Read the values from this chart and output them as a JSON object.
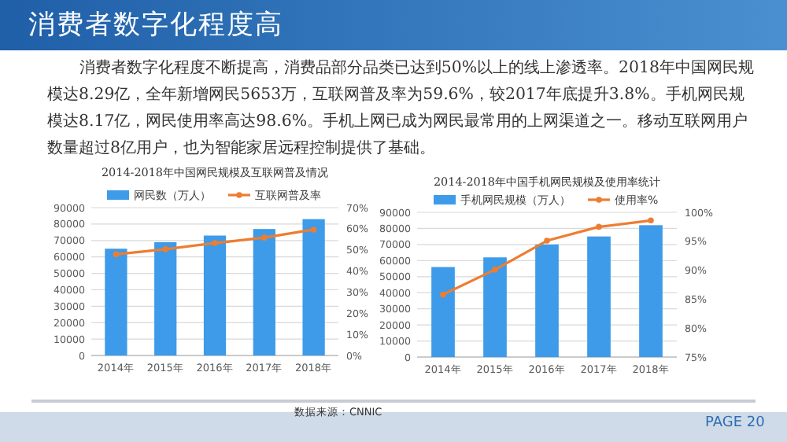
{
  "chart_data": [
    {
      "type": "bar",
      "title": "2014-2018年中国网民规模及互联网普及情况",
      "categories": [
        "2014年",
        "2015年",
        "2016年",
        "2017年",
        "2018年"
      ],
      "series": [
        {
          "name": "网民数（万人）",
          "color": "#3d9be9",
          "values": [
            65000,
            69000,
            73000,
            77000,
            83000
          ]
        },
        {
          "name": "互联网普及率",
          "type": "line",
          "axis": "y2",
          "color": "#ed7d31",
          "values": [
            47.9,
            50.3,
            53.2,
            55.8,
            59.6
          ]
        }
      ],
      "ylim": [
        0,
        90000
      ],
      "yticks": [
        0,
        10000,
        20000,
        30000,
        40000,
        50000,
        60000,
        70000,
        80000,
        90000
      ],
      "y2lim": [
        0,
        70
      ],
      "y2ticks": [
        {
          "value": 0,
          "label": "0%"
        },
        {
          "value": 10,
          "label": "10%"
        },
        {
          "value": 20,
          "label": "20%"
        },
        {
          "value": 30,
          "label": "30%"
        },
        {
          "value": 40,
          "label": "40%"
        },
        {
          "value": 50,
          "label": "50%"
        },
        {
          "value": 60,
          "label": "60%"
        },
        {
          "value": 70,
          "label": "70%"
        }
      ],
      "grid": "y",
      "legend": "top",
      "marker": "circle",
      "annotations": [
        "消费者数字化程度高",
        "消费者数字化程度不断提高，消费品部分品类已达到50%以上的线上渗透率。2018年中国网民规模达8.29亿，全年新增网民5653万，互联网普及率为59.6%，较2017年底提升3.8%。手机网民规模达8.17亿，网民使用率高达98.6%。手机上网已成为网民最常用的上网渠道之一。移动互联网用户数量超过8亿用户，也为智能家居远程控制提供了基础。",
        "数据来源：CNNIC"
      ]
    },
    {
      "type": "bar",
      "title": "2014-2018年中国手机网民规模及使用率统计",
      "categories": [
        "2014年",
        "2015年",
        "2016年",
        "2017年",
        "2018年"
      ],
      "series": [
        {
          "name": "手机网民规模（万人）",
          "color": "#3d9be9",
          "values": [
            56000,
            62000,
            70000,
            75000,
            82000
          ]
        },
        {
          "name": "使用率%",
          "type": "line",
          "axis": "y2",
          "color": "#ed7d31",
          "values": [
            85.8,
            90.1,
            95.1,
            97.5,
            98.6
          ]
        }
      ],
      "ylim": [
        0,
        90000
      ],
      "yticks": [
        0,
        10000,
        20000,
        30000,
        40000,
        50000,
        60000,
        70000,
        80000,
        90000
      ],
      "y2lim": [
        75,
        100
      ],
      "y2ticks": [
        {
          "value": 75,
          "label": "75%"
        },
        {
          "value": 80,
          "label": "80%"
        },
        {
          "value": 85,
          "label": "85%"
        },
        {
          "value": 90,
          "label": "90%"
        },
        {
          "value": 95,
          "label": "95%"
        },
        {
          "value": 100,
          "label": "100%"
        }
      ],
      "grid": "y",
      "legend": "top",
      "marker": "circle",
      "annotations": [
        "PAGE 20"
      ]
    }
  ]
}
